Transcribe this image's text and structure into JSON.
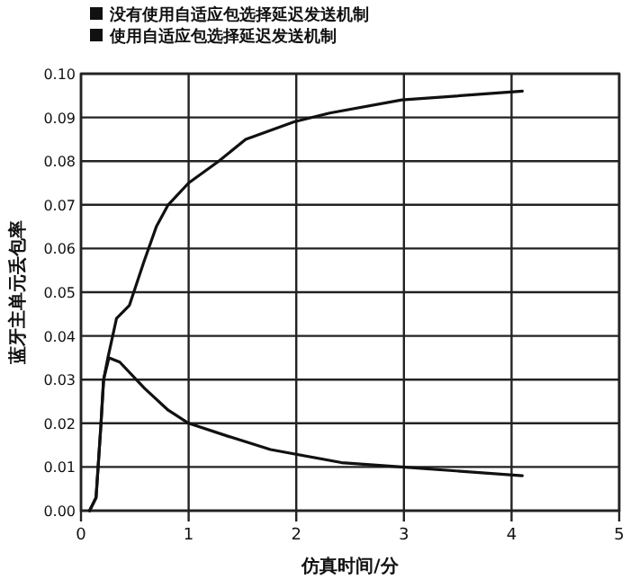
{
  "chart_data": {
    "type": "line",
    "xlabel": "仿真时间/分",
    "ylabel": "蓝牙主单元丢包率",
    "xlim": [
      0,
      5
    ],
    "xticks": [
      0,
      1,
      2,
      3,
      4,
      5
    ],
    "ylim": [
      0,
      0.1
    ],
    "yticks": [
      {
        "value": 0,
        "label": "0.00"
      },
      {
        "value": 0.01,
        "label": "0.01"
      },
      {
        "value": 0.02,
        "label": "0.02"
      },
      {
        "value": 0.03,
        "label": "0.03"
      },
      {
        "value": 0.04,
        "label": "0.04"
      },
      {
        "value": 0.05,
        "label": "0.05"
      },
      {
        "value": 0.06,
        "label": "0.06"
      },
      {
        "value": 0.07,
        "label": "0.07"
      },
      {
        "value": 0.08,
        "label": "0.08"
      },
      {
        "value": 0.09,
        "label": "0.09"
      },
      {
        "value": 0.1,
        "label": "0.10"
      }
    ],
    "grid": true,
    "legend": "top",
    "marker": "none",
    "line_style": "solid",
    "series": [
      {
        "name": "没有使用自适应包选择延迟发送机制",
        "color": "#111111",
        "x": [
          0.08,
          0.14,
          0.185,
          0.21,
          0.25,
          0.33,
          0.45,
          0.585,
          0.7,
          0.81,
          1.0,
          1.28,
          1.53,
          1.98,
          2.31,
          2.98,
          4.1
        ],
        "values": [
          0,
          0.003,
          0.0196,
          0.03,
          0.035,
          0.044,
          0.047,
          0.057,
          0.065,
          0.07,
          0.075,
          0.08,
          0.085,
          0.089,
          0.091,
          0.094,
          0.096
        ]
      },
      {
        "name": "使用自适应包选择延迟发送机制",
        "color": "#111111",
        "x": [
          0.08,
          0.14,
          0.185,
          0.21,
          0.26,
          0.36,
          0.59,
          0.81,
          1.0,
          1.37,
          1.76,
          2.42,
          2.98,
          4.1
        ],
        "values": [
          0,
          0.003,
          0.0196,
          0.03,
          0.035,
          0.034,
          0.028,
          0.023,
          0.02,
          0.017,
          0.014,
          0.011,
          0.01,
          0.008
        ]
      }
    ]
  }
}
